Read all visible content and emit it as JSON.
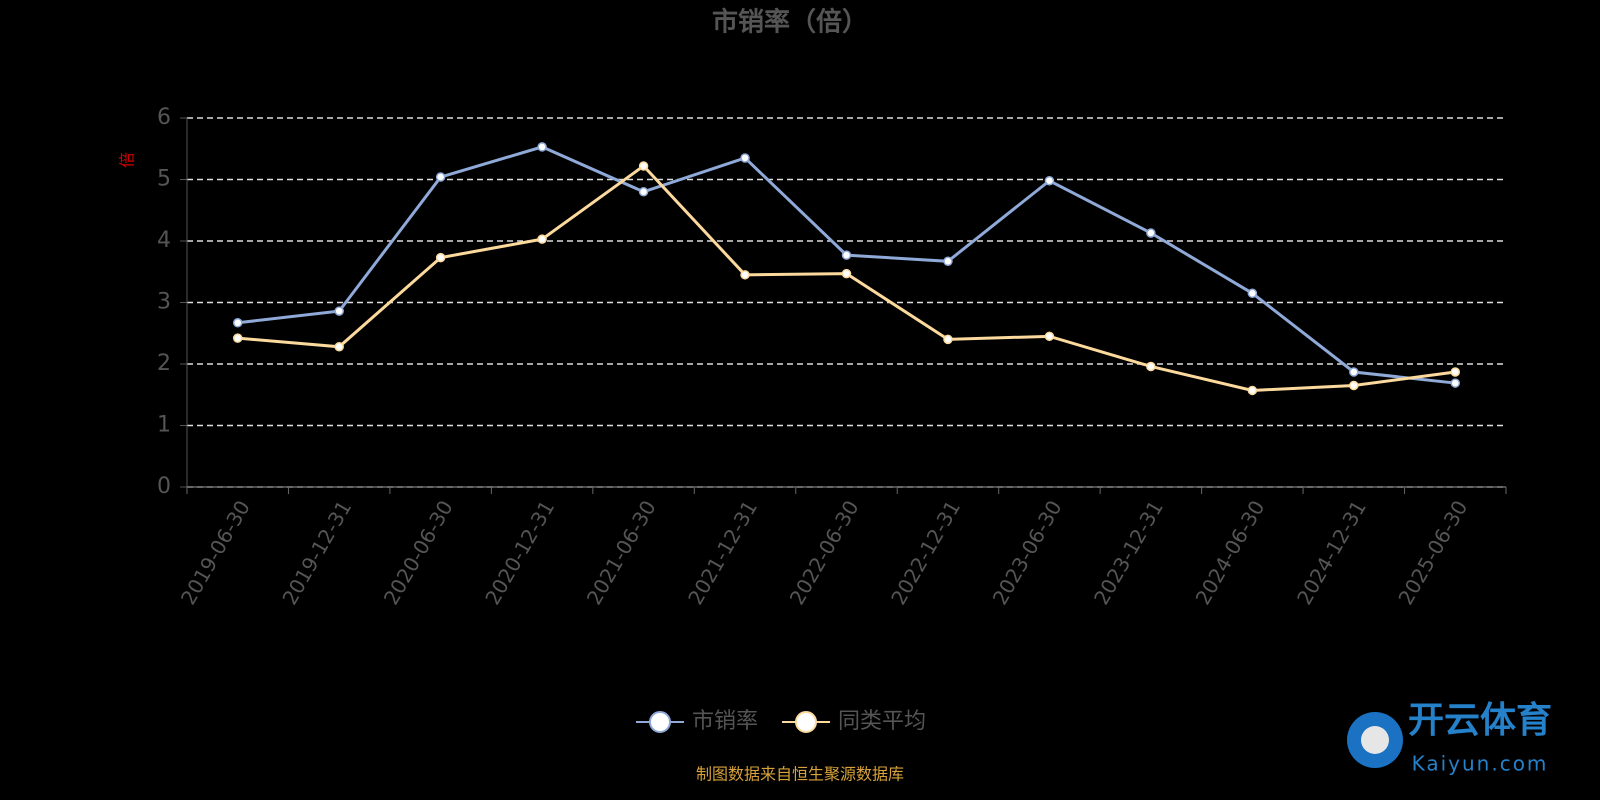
{
  "chart_data": {
    "type": "line",
    "title": "市销率（倍）",
    "y_label": "倍",
    "categories": [
      "2019-06-30",
      "2019-12-31",
      "2020-06-30",
      "2020-12-31",
      "2021-06-30",
      "2021-12-31",
      "2022-06-30",
      "2022-12-31",
      "2023-06-30",
      "2023-12-31",
      "2024-06-30",
      "2024-12-31",
      "2025-06-30"
    ],
    "series": [
      {
        "name": "市销率",
        "color": "#8fa9d8",
        "values": [
          2.67,
          2.86,
          5.04,
          5.53,
          4.8,
          5.35,
          3.77,
          3.67,
          4.98,
          4.13,
          3.15,
          1.87,
          1.69
        ]
      },
      {
        "name": "同类平均",
        "color": "#fcd99c",
        "values": [
          2.42,
          2.28,
          3.73,
          4.03,
          5.22,
          3.45,
          3.47,
          2.4,
          2.45,
          1.96,
          1.57,
          1.65,
          1.87
        ]
      }
    ],
    "ylim": [
      0,
      6
    ],
    "yticks": [
      0,
      1,
      2,
      3,
      4,
      5,
      6
    ],
    "grid": true,
    "source": "制图数据来自恒生聚源数据库",
    "watermark": {
      "brand": "开云体育",
      "site": "Kaiyun.com"
    }
  }
}
